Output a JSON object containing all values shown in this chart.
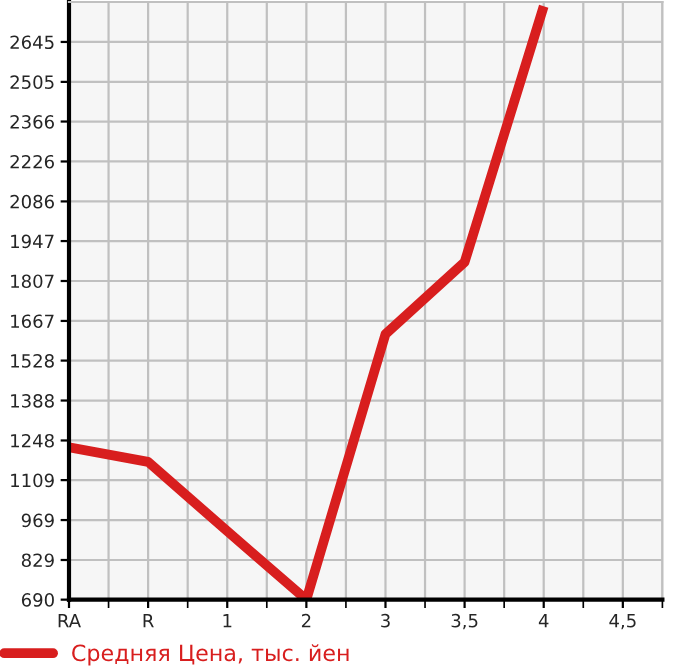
{
  "chart_data": {
    "type": "line",
    "categories": [
      "RA",
      "R",
      "1",
      "2",
      "3",
      "3,5",
      "4",
      "4,5"
    ],
    "series": [
      {
        "name": "Средняя Цена, тыс. йен",
        "color": "#d81e1e",
        "values": [
          1224,
          1173,
          930,
          690,
          1621,
          1873,
          2770,
          null
        ]
      }
    ],
    "ylim": [
      690,
      2785
    ],
    "yticks": [
      690,
      829,
      969,
      1109,
      1248,
      1388,
      1528,
      1667,
      1807,
      1947,
      2086,
      2226,
      2366,
      2505,
      2645
    ],
    "grid": true,
    "legend": "bottom",
    "marker": "none",
    "line_style": "solid"
  }
}
